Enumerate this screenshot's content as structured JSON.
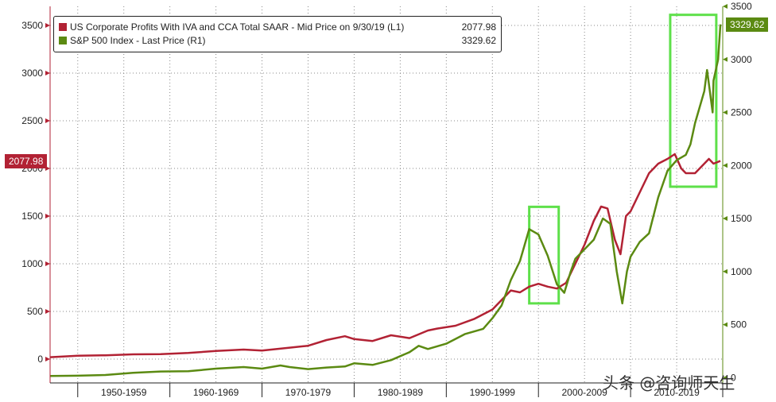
{
  "chart_data": {
    "type": "line",
    "x_tick_labels": [
      "1950-1959",
      "1960-1969",
      "1970-1979",
      "1980-1989",
      "1990-1999",
      "2000-2009",
      "2010-2019"
    ],
    "xlim": [
      1947,
      2020
    ],
    "y_left": {
      "ylim": [
        -250,
        3700
      ],
      "ticks": [
        0,
        500,
        1000,
        1500,
        2000,
        2500,
        3000,
        3500
      ],
      "color": "#b22234"
    },
    "y_right": {
      "ylim": [
        -50,
        3500
      ],
      "ticks": [
        0,
        500,
        1000,
        1500,
        2000,
        2500,
        3000,
        3500
      ],
      "color": "#5b8a12"
    },
    "series": [
      {
        "name": "US Corporate Profits With IVA and CCA Total SAAR - Mid Price on 9/30/19 (L1)",
        "last_value": "2077.98",
        "axis": "left",
        "color": "#b22234",
        "x": [
          1947,
          1950,
          1953,
          1956,
          1959,
          1962,
          1965,
          1968,
          1970,
          1973,
          1975,
          1977,
          1979,
          1980,
          1982,
          1984,
          1986,
          1988,
          1989,
          1991,
          1993,
          1995,
          1997,
          1998,
          1999,
          2000,
          2001,
          2002,
          2003,
          2004,
          2005,
          2006,
          2006.8,
          2007.5,
          2008.3,
          2008.9,
          2009.5,
          2010,
          2011,
          2012,
          2013,
          2014,
          2014.8,
          2015.5,
          2016,
          2017,
          2018,
          2018.5,
          2019,
          2019.75
        ],
        "values": [
          20,
          35,
          40,
          50,
          52,
          65,
          85,
          100,
          90,
          120,
          140,
          200,
          240,
          210,
          190,
          250,
          220,
          300,
          320,
          350,
          420,
          520,
          720,
          700,
          760,
          790,
          760,
          740,
          800,
          1000,
          1200,
          1450,
          1600,
          1580,
          1250,
          1100,
          1500,
          1550,
          1750,
          1950,
          2050,
          2100,
          2150,
          2000,
          1950,
          1950,
          2050,
          2100,
          2050,
          2078
        ]
      },
      {
        "name": "S&P 500 Index - Last Price (R1)",
        "last_value": "3329.62",
        "axis": "right",
        "color": "#5b8a12",
        "x": [
          1947,
          1950,
          1953,
          1956,
          1959,
          1962,
          1965,
          1968,
          1970,
          1972,
          1973,
          1975,
          1977,
          1979,
          1980,
          1982,
          1984,
          1986,
          1987,
          1988,
          1990,
          1992,
          1994,
          1995,
          1996,
          1997,
          1998,
          1999,
          2000,
          2001,
          2002,
          2002.8,
          2003.5,
          2004,
          2005,
          2006,
          2007,
          2007.8,
          2008.5,
          2009.1,
          2009.6,
          2010,
          2011,
          2012,
          2013,
          2014,
          2015,
          2016,
          2016.5,
          2017,
          2018,
          2018.3,
          2018.9,
          2019,
          2019.5,
          2019.75
        ],
        "values": [
          15,
          18,
          25,
          45,
          58,
          60,
          85,
          100,
          85,
          115,
          100,
          80,
          95,
          105,
          135,
          120,
          165,
          240,
          300,
          270,
          320,
          410,
          460,
          560,
          680,
          920,
          1100,
          1400,
          1350,
          1150,
          880,
          800,
          1000,
          1120,
          1210,
          1300,
          1500,
          1450,
          1000,
          700,
          1000,
          1140,
          1280,
          1360,
          1700,
          1950,
          2050,
          2100,
          2200,
          2400,
          2700,
          2900,
          2500,
          2800,
          3000,
          3330
        ]
      }
    ],
    "highlight_boxes": [
      {
        "x_range": [
          1999,
          2002.2
        ],
        "y_range_right": [
          700,
          1610
        ]
      },
      {
        "x_range": [
          2014.3,
          2019.3
        ],
        "y_range_right": [
          1800,
          3420
        ]
      }
    ]
  },
  "watermark_text": "头条 @咨询师天生"
}
